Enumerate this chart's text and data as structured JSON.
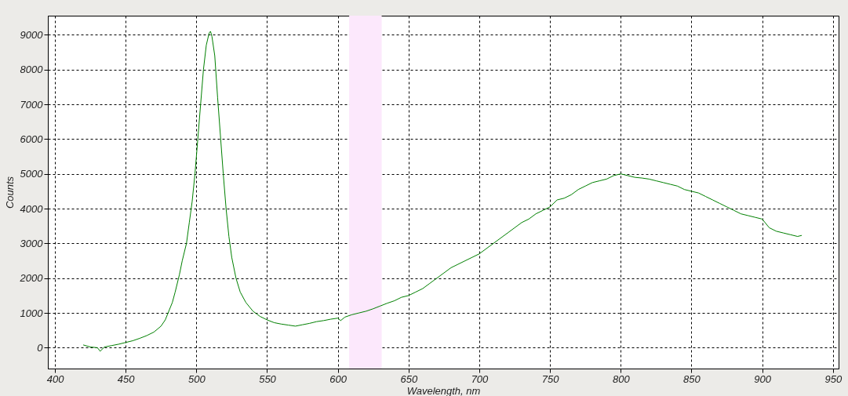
{
  "chart_data": {
    "type": "line",
    "xlabel": "Wavelength, nm",
    "ylabel": "Counts",
    "xlim": [
      395,
      954
    ],
    "ylim": [
      -600,
      9550
    ],
    "xticks": [
      400,
      450,
      500,
      550,
      600,
      650,
      700,
      750,
      800,
      850,
      900,
      950
    ],
    "yticks": [
      0,
      1000,
      2000,
      3000,
      4000,
      5000,
      6000,
      7000,
      8000,
      9000
    ],
    "grid": true,
    "line_style": "solid",
    "bands": [
      {
        "axis": "x",
        "from": 608,
        "to": 631,
        "color": "#fce8fc"
      }
    ],
    "series": [
      {
        "color": "#008000",
        "x": [
          420,
          425,
          430,
          432,
          435,
          440,
          445,
          450,
          455,
          460,
          465,
          470,
          475,
          478,
          480,
          483,
          485,
          488,
          490,
          493,
          495,
          497,
          499,
          501,
          503,
          505,
          507,
          509,
          510,
          511,
          513,
          515,
          517,
          519,
          521,
          523,
          525,
          528,
          531,
          535,
          540,
          545,
          550,
          555,
          560,
          565,
          570,
          575,
          580,
          585,
          590,
          595,
          600,
          602,
          605,
          610,
          615,
          620,
          625,
          630,
          635,
          640,
          645,
          650,
          655,
          660,
          665,
          670,
          675,
          680,
          685,
          690,
          695,
          700,
          705,
          710,
          715,
          720,
          725,
          730,
          735,
          740,
          745,
          750,
          755,
          760,
          765,
          770,
          775,
          780,
          785,
          790,
          795,
          800,
          805,
          810,
          815,
          820,
          825,
          830,
          835,
          840,
          845,
          850,
          855,
          860,
          865,
          870,
          875,
          880,
          885,
          890,
          895,
          900,
          905,
          910,
          915,
          920,
          925,
          928
        ],
        "values": [
          80,
          20,
          0,
          -100,
          20,
          60,
          100,
          150,
          200,
          270,
          350,
          450,
          620,
          800,
          1000,
          1300,
          1600,
          2100,
          2500,
          3000,
          3600,
          4200,
          5000,
          6000,
          7000,
          8000,
          8700,
          9050,
          9100,
          8950,
          8400,
          7200,
          6100,
          5000,
          4000,
          3200,
          2600,
          2000,
          1600,
          1300,
          1050,
          900,
          800,
          720,
          680,
          650,
          620,
          660,
          700,
          750,
          780,
          820,
          850,
          780,
          880,
          950,
          1000,
          1050,
          1120,
          1200,
          1280,
          1350,
          1450,
          1500,
          1600,
          1700,
          1850,
          2000,
          2150,
          2300,
          2400,
          2500,
          2600,
          2700,
          2850,
          3000,
          3150,
          3300,
          3450,
          3600,
          3700,
          3850,
          3950,
          4050,
          4250,
          4300,
          4400,
          4550,
          4650,
          4750,
          4800,
          4850,
          4950,
          5000,
          4950,
          4900,
          4880,
          4850,
          4800,
          4750,
          4700,
          4650,
          4550,
          4500,
          4450,
          4350,
          4250,
          4150,
          4050,
          3950,
          3850,
          3800,
          3750,
          3700,
          3450,
          3350,
          3300,
          3250,
          3200,
          3230
        ]
      }
    ]
  }
}
